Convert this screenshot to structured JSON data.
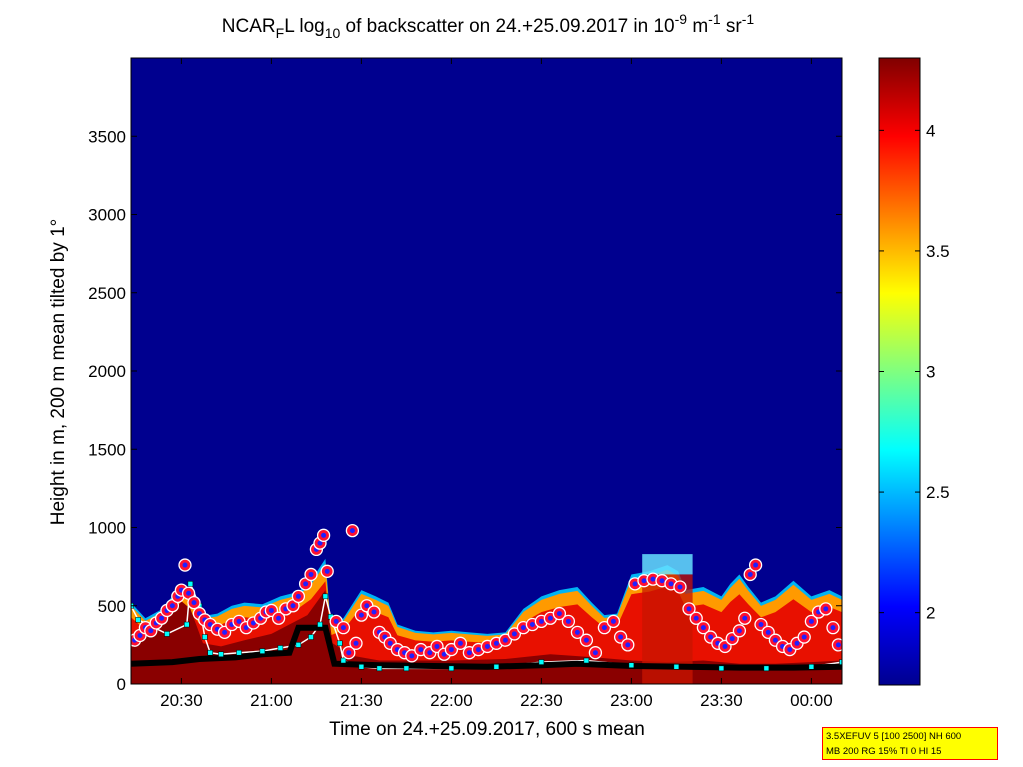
{
  "chart_data": {
    "type": "heatmap",
    "title_parts": {
      "pre": "NCAR",
      "sub1": "F",
      "mid": "L log",
      "sub2": "10",
      "mid2": " of backscatter on 24.+25.09.2017 in 10",
      "sup1": "-9",
      "mid3": " m",
      "sup2": "-1",
      "mid4": " sr",
      "sup3": "-1"
    },
    "xlabel": "Time on 24.+25.09.2017, 600 s mean",
    "ylabel": "Height in m, 200 m mean tilted by 1°",
    "xlim_hours": [
      20.22,
      24.17
    ],
    "x_ticks": [
      {
        "hour": 20.5,
        "label": "20:30"
      },
      {
        "hour": 21.0,
        "label": "21:00"
      },
      {
        "hour": 21.5,
        "label": "21:30"
      },
      {
        "hour": 22.0,
        "label": "22:00"
      },
      {
        "hour": 22.5,
        "label": "22:30"
      },
      {
        "hour": 23.0,
        "label": "23:00"
      },
      {
        "hour": 23.5,
        "label": "23:30"
      },
      {
        "hour": 24.0,
        "label": "00:00"
      }
    ],
    "ylim": [
      0,
      4000
    ],
    "y_ticks": [
      0,
      500,
      1000,
      1500,
      2000,
      2500,
      3000,
      3500
    ],
    "colorbar": {
      "range": [
        1.7,
        4.3
      ],
      "ticks": [
        "2",
        "2.5",
        "3",
        "3.5",
        "4"
      ],
      "colormap": "jet"
    },
    "aerosol_top": [
      [
        20.22,
        520
      ],
      [
        20.3,
        420
      ],
      [
        20.38,
        470
      ],
      [
        20.45,
        560
      ],
      [
        20.5,
        620
      ],
      [
        20.55,
        560
      ],
      [
        20.6,
        470
      ],
      [
        20.65,
        440
      ],
      [
        20.7,
        450
      ],
      [
        20.78,
        500
      ],
      [
        20.85,
        520
      ],
      [
        20.95,
        510
      ],
      [
        21.05,
        560
      ],
      [
        21.15,
        590
      ],
      [
        21.22,
        660
      ],
      [
        21.3,
        800
      ],
      [
        21.33,
        380
      ],
      [
        21.4,
        420
      ],
      [
        21.5,
        600
      ],
      [
        21.58,
        560
      ],
      [
        21.65,
        520
      ],
      [
        21.7,
        380
      ],
      [
        21.8,
        340
      ],
      [
        21.9,
        330
      ],
      [
        22.0,
        340
      ],
      [
        22.1,
        330
      ],
      [
        22.2,
        320
      ],
      [
        22.3,
        330
      ],
      [
        22.4,
        480
      ],
      [
        22.5,
        560
      ],
      [
        22.6,
        600
      ],
      [
        22.7,
        620
      ],
      [
        22.78,
        520
      ],
      [
        22.85,
        440
      ],
      [
        22.92,
        450
      ],
      [
        23.0,
        700
      ],
      [
        23.1,
        720
      ],
      [
        23.2,
        760
      ],
      [
        23.26,
        720
      ],
      [
        23.3,
        600
      ],
      [
        23.4,
        620
      ],
      [
        23.5,
        560
      ],
      [
        23.55,
        640
      ],
      [
        23.6,
        700
      ],
      [
        23.65,
        620
      ],
      [
        23.72,
        520
      ],
      [
        23.8,
        560
      ],
      [
        23.9,
        660
      ],
      [
        24.0,
        560
      ],
      [
        24.1,
        600
      ],
      [
        24.17,
        560
      ]
    ],
    "red_layer_top": [
      [
        20.22,
        230
      ],
      [
        20.3,
        300
      ],
      [
        20.4,
        380
      ],
      [
        20.5,
        530
      ],
      [
        20.55,
        480
      ],
      [
        20.62,
        260
      ],
      [
        20.72,
        240
      ],
      [
        20.85,
        280
      ],
      [
        21.0,
        320
      ],
      [
        21.1,
        380
      ],
      [
        21.2,
        440
      ],
      [
        21.3,
        600
      ],
      [
        21.34,
        260
      ],
      [
        21.45,
        180
      ],
      [
        21.6,
        150
      ],
      [
        21.8,
        150
      ],
      [
        22.0,
        150
      ],
      [
        22.3,
        160
      ],
      [
        22.55,
        190
      ],
      [
        22.8,
        170
      ],
      [
        23.0,
        150
      ],
      [
        23.2,
        140
      ],
      [
        23.4,
        150
      ],
      [
        23.6,
        130
      ],
      [
        23.8,
        130
      ],
      [
        24.0,
        140
      ],
      [
        24.17,
        150
      ]
    ],
    "blue_streak": {
      "start_hour": 23.06,
      "end_hour": 23.34,
      "height": 830
    },
    "mixing_layer_cyan": [
      [
        20.22,
        500
      ],
      [
        20.26,
        410
      ],
      [
        20.42,
        320
      ],
      [
        20.53,
        380
      ],
      [
        20.55,
        640
      ],
      [
        20.6,
        500
      ],
      [
        20.63,
        300
      ],
      [
        20.66,
        200
      ],
      [
        20.72,
        190
      ],
      [
        20.82,
        200
      ],
      [
        20.95,
        210
      ],
      [
        21.05,
        230
      ],
      [
        21.15,
        250
      ],
      [
        21.22,
        300
      ],
      [
        21.27,
        380
      ],
      [
        21.3,
        560
      ],
      [
        21.33,
        430
      ],
      [
        21.38,
        260
      ],
      [
        21.4,
        150
      ],
      [
        21.5,
        110
      ],
      [
        21.6,
        100
      ],
      [
        21.75,
        100
      ],
      [
        22.0,
        100
      ],
      [
        22.25,
        110
      ],
      [
        22.5,
        140
      ],
      [
        22.75,
        150
      ],
      [
        23.0,
        120
      ],
      [
        23.25,
        110
      ],
      [
        23.5,
        100
      ],
      [
        23.75,
        100
      ],
      [
        24.0,
        110
      ],
      [
        24.17,
        140
      ]
    ],
    "layer_black": [
      [
        20.22,
        130
      ],
      [
        20.45,
        140
      ],
      [
        20.6,
        160
      ],
      [
        20.8,
        170
      ],
      [
        20.95,
        190
      ],
      [
        21.1,
        200
      ],
      [
        21.15,
        360
      ],
      [
        21.3,
        360
      ],
      [
        21.35,
        130
      ],
      [
        21.6,
        120
      ],
      [
        21.9,
        115
      ],
      [
        22.2,
        110
      ],
      [
        22.5,
        120
      ],
      [
        22.7,
        130
      ],
      [
        23.0,
        115
      ],
      [
        23.3,
        110
      ],
      [
        23.6,
        105
      ],
      [
        23.9,
        105
      ],
      [
        24.17,
        110
      ]
    ],
    "cloud_base_markers": [
      [
        20.24,
        280
      ],
      [
        20.27,
        310
      ],
      [
        20.3,
        360
      ],
      [
        20.33,
        340
      ],
      [
        20.36,
        390
      ],
      [
        20.39,
        420
      ],
      [
        20.42,
        470
      ],
      [
        20.45,
        500
      ],
      [
        20.48,
        560
      ],
      [
        20.5,
        600
      ],
      [
        20.52,
        760
      ],
      [
        20.54,
        580
      ],
      [
        20.57,
        520
      ],
      [
        20.6,
        450
      ],
      [
        20.63,
        410
      ],
      [
        20.66,
        380
      ],
      [
        20.7,
        350
      ],
      [
        20.74,
        330
      ],
      [
        20.78,
        380
      ],
      [
        20.82,
        400
      ],
      [
        20.86,
        360
      ],
      [
        20.9,
        390
      ],
      [
        20.94,
        420
      ],
      [
        20.97,
        460
      ],
      [
        21.0,
        470
      ],
      [
        21.04,
        420
      ],
      [
        21.08,
        480
      ],
      [
        21.12,
        500
      ],
      [
        21.15,
        560
      ],
      [
        21.19,
        640
      ],
      [
        21.22,
        700
      ],
      [
        21.25,
        860
      ],
      [
        21.27,
        900
      ],
      [
        21.29,
        950
      ],
      [
        21.31,
        720
      ],
      [
        21.36,
        400
      ],
      [
        21.4,
        360
      ],
      [
        21.43,
        200
      ],
      [
        21.45,
        980
      ],
      [
        21.47,
        260
      ],
      [
        21.5,
        440
      ],
      [
        21.53,
        500
      ],
      [
        21.57,
        460
      ],
      [
        21.6,
        330
      ],
      [
        21.63,
        300
      ],
      [
        21.66,
        260
      ],
      [
        21.7,
        220
      ],
      [
        21.74,
        200
      ],
      [
        21.78,
        180
      ],
      [
        21.83,
        220
      ],
      [
        21.88,
        200
      ],
      [
        21.92,
        240
      ],
      [
        21.96,
        190
      ],
      [
        22.0,
        220
      ],
      [
        22.05,
        260
      ],
      [
        22.1,
        200
      ],
      [
        22.15,
        220
      ],
      [
        22.2,
        240
      ],
      [
        22.25,
        260
      ],
      [
        22.3,
        280
      ],
      [
        22.35,
        320
      ],
      [
        22.4,
        360
      ],
      [
        22.45,
        380
      ],
      [
        22.5,
        400
      ],
      [
        22.55,
        420
      ],
      [
        22.6,
        450
      ],
      [
        22.65,
        400
      ],
      [
        22.7,
        330
      ],
      [
        22.75,
        280
      ],
      [
        22.8,
        200
      ],
      [
        22.85,
        360
      ],
      [
        22.9,
        400
      ],
      [
        22.94,
        300
      ],
      [
        22.98,
        250
      ],
      [
        23.02,
        640
      ],
      [
        23.07,
        660
      ],
      [
        23.12,
        670
      ],
      [
        23.17,
        660
      ],
      [
        23.22,
        640
      ],
      [
        23.27,
        620
      ],
      [
        23.32,
        480
      ],
      [
        23.36,
        420
      ],
      [
        23.4,
        360
      ],
      [
        23.44,
        300
      ],
      [
        23.48,
        260
      ],
      [
        23.52,
        240
      ],
      [
        23.56,
        290
      ],
      [
        23.6,
        340
      ],
      [
        23.63,
        420
      ],
      [
        23.66,
        700
      ],
      [
        23.69,
        760
      ],
      [
        23.72,
        380
      ],
      [
        23.76,
        330
      ],
      [
        23.8,
        280
      ],
      [
        23.84,
        240
      ],
      [
        23.88,
        220
      ],
      [
        23.92,
        260
      ],
      [
        23.96,
        300
      ],
      [
        24.0,
        400
      ],
      [
        24.04,
        460
      ],
      [
        24.08,
        480
      ],
      [
        24.12,
        360
      ],
      [
        24.15,
        250
      ]
    ]
  },
  "info_box": {
    "line1": "3.5XEFUV 5 [100 2500] NH 600",
    "line2": "MB 200 RG 15% TI 0 HI 15"
  }
}
